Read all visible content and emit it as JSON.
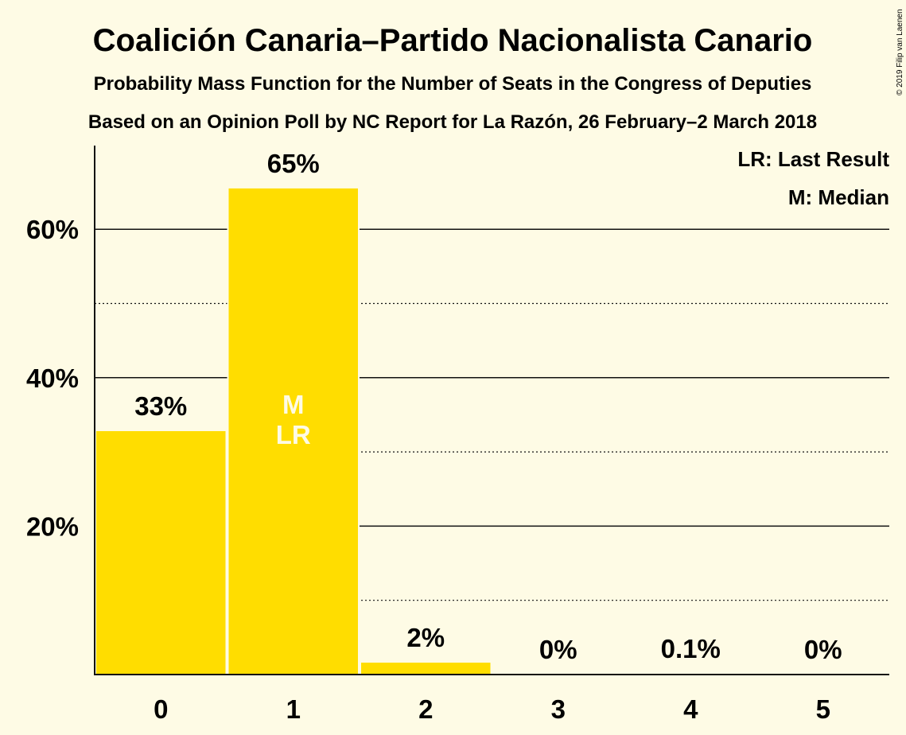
{
  "chart_data": {
    "type": "bar",
    "title": "Coalición Canaria–Partido Nacionalista Canario",
    "subtitle": "Probability Mass Function for the Number of Seats in the Congress of Deputies",
    "subtitle2": "Based on an Opinion Poll by NC Report for La Razón, 26 February–2 March 2018",
    "categories": [
      "0",
      "1",
      "2",
      "3",
      "4",
      "5"
    ],
    "values": [
      32.8,
      65.5,
      1.6,
      0.0,
      0.1,
      0.0
    ],
    "data_labels": [
      "33%",
      "65%",
      "2%",
      "0%",
      "0.1%",
      "0%"
    ],
    "ylim": [
      0,
      71
    ],
    "yticks": [
      20,
      40,
      60
    ],
    "ytick_labels": [
      "20%",
      "40%",
      "60%"
    ],
    "minor_gridlines": [
      10,
      30,
      50
    ],
    "median_index": 1,
    "last_result_index": 1,
    "median_marker": "M",
    "last_result_marker": "LR",
    "legend": [
      "LR: Last Result",
      "M: Median"
    ],
    "legend_position": "top-right",
    "bar_color": "#ffdd00",
    "background_color": "#fefbe5",
    "copyright": "© 2019 Filip van Laenen"
  }
}
